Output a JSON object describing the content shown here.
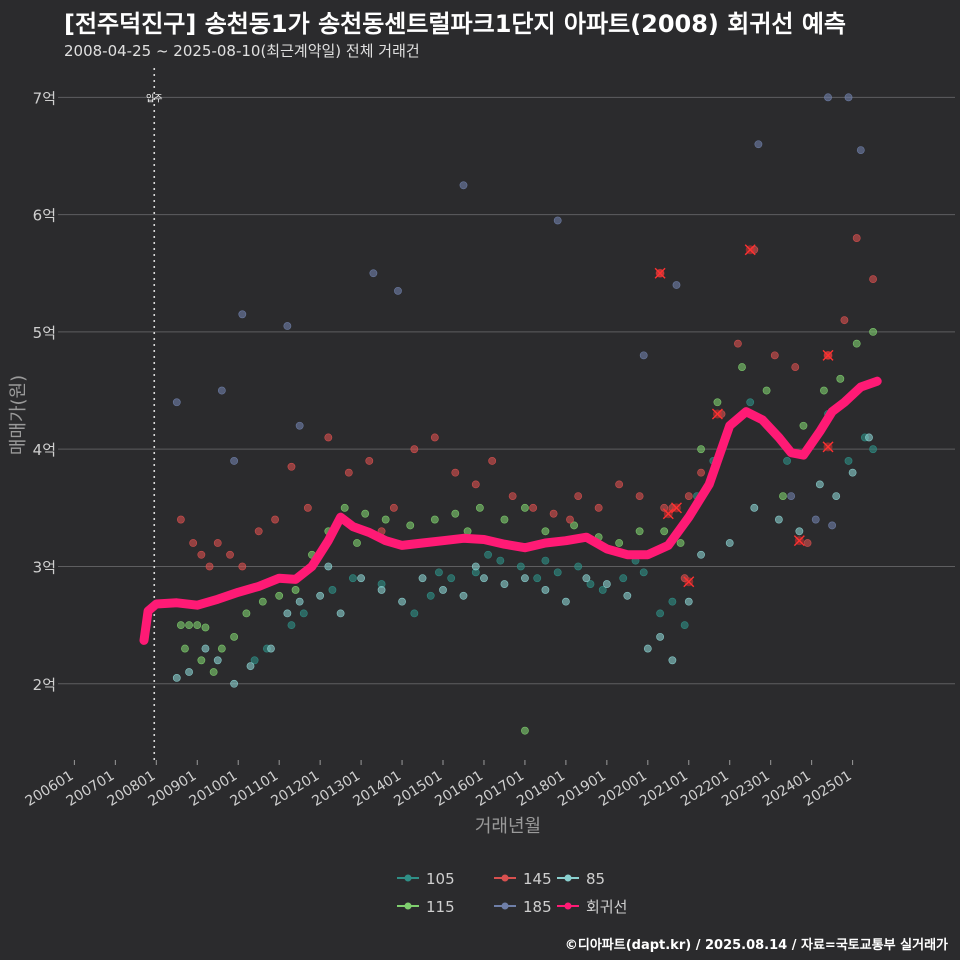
{
  "title": "[전주덕진구] 송천동1가 송천동센트럴파크1단지 아파트(2008) 회귀선 예측",
  "subtitle": "2008-04-25 ~ 2025-08-10(최근계약일) 전체 거래건",
  "credit": "©디아파트(dapt.kr) / 2025.08.14 / 자료=국토교통부 실거래가",
  "chart_data": {
    "type": "scatter",
    "xlabel": "거래년월",
    "ylabel": "매매가(원)",
    "xlim": [
      2005.6,
      2027.5
    ],
    "ylim": [
      1.35,
      7.25
    ],
    "x_ticks": [
      {
        "v": 2006.0,
        "label": "200601"
      },
      {
        "v": 2007.0,
        "label": "200701"
      },
      {
        "v": 2008.0,
        "label": "200801"
      },
      {
        "v": 2009.0,
        "label": "200901"
      },
      {
        "v": 2010.0,
        "label": "201001"
      },
      {
        "v": 2011.0,
        "label": "201101"
      },
      {
        "v": 2012.0,
        "label": "201201"
      },
      {
        "v": 2013.0,
        "label": "201301"
      },
      {
        "v": 2014.0,
        "label": "201401"
      },
      {
        "v": 2015.0,
        "label": "201501"
      },
      {
        "v": 2016.0,
        "label": "201601"
      },
      {
        "v": 2017.0,
        "label": "201701"
      },
      {
        "v": 2018.0,
        "label": "201801"
      },
      {
        "v": 2019.0,
        "label": "201901"
      },
      {
        "v": 2020.0,
        "label": "202001"
      },
      {
        "v": 2021.0,
        "label": "202101"
      },
      {
        "v": 2022.0,
        "label": "202201"
      },
      {
        "v": 2023.0,
        "label": "202301"
      },
      {
        "v": 2024.0,
        "label": "202401"
      },
      {
        "v": 2025.0,
        "label": "202501"
      }
    ],
    "y_ticks": [
      {
        "v": 2,
        "label": "2억"
      },
      {
        "v": 3,
        "label": "3억"
      },
      {
        "v": 4,
        "label": "4억"
      },
      {
        "v": 5,
        "label": "5억"
      },
      {
        "v": 6,
        "label": "6억"
      },
      {
        "v": 7,
        "label": "7억"
      }
    ],
    "move_in": {
      "x": 2007.95,
      "label": "입주"
    },
    "series": [
      {
        "name": "105",
        "color": "#2f8f86",
        "points": [
          [
            2010.4,
            2.2
          ],
          [
            2010.7,
            2.3
          ],
          [
            2011.3,
            2.5
          ],
          [
            2011.6,
            2.6
          ],
          [
            2012.3,
            2.8
          ],
          [
            2012.8,
            2.9
          ],
          [
            2013.5,
            2.85
          ],
          [
            2014.3,
            2.6
          ],
          [
            2014.7,
            2.75
          ],
          [
            2015.2,
            2.9
          ],
          [
            2015.8,
            2.95
          ],
          [
            2016.4,
            3.05
          ],
          [
            2016.9,
            3.0
          ],
          [
            2017.3,
            2.9
          ],
          [
            2017.8,
            2.95
          ],
          [
            2018.3,
            3.0
          ],
          [
            2018.9,
            2.8
          ],
          [
            2019.4,
            2.9
          ],
          [
            2019.9,
            2.95
          ],
          [
            2020.3,
            2.6
          ],
          [
            2020.6,
            2.7
          ],
          [
            2020.9,
            2.5
          ],
          [
            2021.2,
            3.6
          ],
          [
            2021.6,
            3.9
          ],
          [
            2022.5,
            4.4
          ],
          [
            2023.4,
            3.9
          ],
          [
            2023.9,
            4.0
          ],
          [
            2024.4,
            4.3
          ],
          [
            2024.9,
            3.9
          ],
          [
            2025.3,
            4.1
          ],
          [
            2025.5,
            4.0
          ],
          [
            2014.9,
            2.95
          ],
          [
            2016.1,
            3.1
          ],
          [
            2017.5,
            3.05
          ],
          [
            2018.6,
            2.85
          ],
          [
            2019.7,
            3.05
          ]
        ]
      },
      {
        "name": "115",
        "color": "#7fcf6e",
        "points": [
          [
            2008.6,
            2.5
          ],
          [
            2008.8,
            2.5
          ],
          [
            2009.0,
            2.5
          ],
          [
            2009.2,
            2.48
          ],
          [
            2008.7,
            2.3
          ],
          [
            2009.1,
            2.2
          ],
          [
            2009.4,
            2.1
          ],
          [
            2009.6,
            2.3
          ],
          [
            2009.9,
            2.4
          ],
          [
            2010.2,
            2.6
          ],
          [
            2010.6,
            2.7
          ],
          [
            2011.0,
            2.75
          ],
          [
            2011.4,
            2.8
          ],
          [
            2011.8,
            3.1
          ],
          [
            2012.2,
            3.3
          ],
          [
            2012.6,
            3.5
          ],
          [
            2013.1,
            3.45
          ],
          [
            2013.6,
            3.4
          ],
          [
            2014.2,
            3.35
          ],
          [
            2014.8,
            3.4
          ],
          [
            2015.3,
            3.45
          ],
          [
            2015.9,
            3.5
          ],
          [
            2016.5,
            3.4
          ],
          [
            2017.0,
            3.5
          ],
          [
            2017.5,
            3.3
          ],
          [
            2018.2,
            3.35
          ],
          [
            2018.8,
            3.25
          ],
          [
            2019.3,
            3.2
          ],
          [
            2019.8,
            3.3
          ],
          [
            2020.4,
            3.3
          ],
          [
            2020.8,
            3.2
          ],
          [
            2021.3,
            4.0
          ],
          [
            2021.7,
            4.4
          ],
          [
            2022.3,
            4.7
          ],
          [
            2022.9,
            4.5
          ],
          [
            2023.3,
            3.6
          ],
          [
            2023.8,
            4.2
          ],
          [
            2024.3,
            4.5
          ],
          [
            2024.7,
            4.6
          ],
          [
            2025.1,
            4.9
          ],
          [
            2025.5,
            5.0
          ],
          [
            2017.0,
            1.6
          ],
          [
            2012.9,
            3.2
          ],
          [
            2015.6,
            3.3
          ]
        ]
      },
      {
        "name": "145",
        "color": "#d8504f",
        "points": [
          [
            2008.6,
            3.4
          ],
          [
            2008.9,
            3.2
          ],
          [
            2009.1,
            3.1
          ],
          [
            2009.3,
            3.0
          ],
          [
            2009.5,
            3.2
          ],
          [
            2009.8,
            3.1
          ],
          [
            2010.1,
            3.0
          ],
          [
            2010.5,
            3.3
          ],
          [
            2010.9,
            3.4
          ],
          [
            2011.3,
            3.85
          ],
          [
            2011.7,
            3.5
          ],
          [
            2012.2,
            4.1
          ],
          [
            2012.7,
            3.8
          ],
          [
            2013.2,
            3.9
          ],
          [
            2013.8,
            3.5
          ],
          [
            2014.3,
            4.0
          ],
          [
            2014.8,
            4.1
          ],
          [
            2015.3,
            3.8
          ],
          [
            2015.8,
            3.7
          ],
          [
            2016.2,
            3.9
          ],
          [
            2016.7,
            3.6
          ],
          [
            2017.2,
            3.5
          ],
          [
            2017.7,
            3.45
          ],
          [
            2018.3,
            3.6
          ],
          [
            2018.8,
            3.5
          ],
          [
            2019.3,
            3.7
          ],
          [
            2019.8,
            3.6
          ],
          [
            2020.3,
            5.5
          ],
          [
            2020.6,
            3.5
          ],
          [
            2020.9,
            2.9
          ],
          [
            2021.3,
            3.8
          ],
          [
            2021.8,
            4.3
          ],
          [
            2022.2,
            4.9
          ],
          [
            2022.6,
            5.7
          ],
          [
            2023.1,
            4.8
          ],
          [
            2023.6,
            4.7
          ],
          [
            2023.9,
            3.2
          ],
          [
            2024.4,
            4.8
          ],
          [
            2024.8,
            5.1
          ],
          [
            2025.1,
            5.8
          ],
          [
            2025.5,
            5.45
          ],
          [
            2020.4,
            3.5
          ],
          [
            2021.0,
            3.6
          ],
          [
            2013.5,
            3.3
          ],
          [
            2018.1,
            3.4
          ]
        ]
      },
      {
        "name": "185",
        "color": "#6f7fa8",
        "points": [
          [
            2008.5,
            4.4
          ],
          [
            2009.6,
            4.5
          ],
          [
            2010.1,
            5.15
          ],
          [
            2009.9,
            3.9
          ],
          [
            2011.2,
            5.05
          ],
          [
            2011.5,
            4.2
          ],
          [
            2013.3,
            5.5
          ],
          [
            2013.9,
            5.35
          ],
          [
            2015.5,
            6.25
          ],
          [
            2017.8,
            5.95
          ],
          [
            2019.9,
            4.8
          ],
          [
            2020.7,
            5.4
          ],
          [
            2022.7,
            6.6
          ],
          [
            2024.4,
            7.0
          ],
          [
            2024.9,
            7.0
          ],
          [
            2025.2,
            6.55
          ],
          [
            2024.5,
            3.35
          ],
          [
            2024.1,
            3.4
          ],
          [
            2023.5,
            3.6
          ]
        ]
      },
      {
        "name": "85",
        "color": "#8ad0cf",
        "points": [
          [
            2008.5,
            2.05
          ],
          [
            2008.8,
            2.1
          ],
          [
            2009.2,
            2.3
          ],
          [
            2009.5,
            2.2
          ],
          [
            2009.9,
            2.0
          ],
          [
            2010.3,
            2.15
          ],
          [
            2010.8,
            2.3
          ],
          [
            2011.2,
            2.6
          ],
          [
            2011.5,
            2.7
          ],
          [
            2012.0,
            2.75
          ],
          [
            2012.5,
            2.6
          ],
          [
            2013.0,
            2.9
          ],
          [
            2013.5,
            2.8
          ],
          [
            2014.0,
            2.7
          ],
          [
            2014.5,
            2.9
          ],
          [
            2015.0,
            2.8
          ],
          [
            2015.5,
            2.75
          ],
          [
            2016.0,
            2.9
          ],
          [
            2016.5,
            2.85
          ],
          [
            2017.0,
            2.9
          ],
          [
            2017.5,
            2.8
          ],
          [
            2018.0,
            2.7
          ],
          [
            2018.5,
            2.9
          ],
          [
            2019.0,
            2.85
          ],
          [
            2019.5,
            2.75
          ],
          [
            2020.0,
            2.3
          ],
          [
            2020.3,
            2.4
          ],
          [
            2020.6,
            2.2
          ],
          [
            2021.0,
            2.7
          ],
          [
            2021.3,
            3.1
          ],
          [
            2022.0,
            3.2
          ],
          [
            2022.6,
            3.5
          ],
          [
            2023.2,
            3.4
          ],
          [
            2023.7,
            3.3
          ],
          [
            2024.2,
            3.7
          ],
          [
            2024.6,
            3.6
          ],
          [
            2025.0,
            3.8
          ],
          [
            2025.4,
            4.1
          ],
          [
            2012.2,
            3.0
          ],
          [
            2015.8,
            3.0
          ]
        ]
      }
    ],
    "outliers": [
      [
        2020.3,
        5.5
      ],
      [
        2020.5,
        3.45
      ],
      [
        2020.7,
        3.5
      ],
      [
        2021.0,
        2.87
      ],
      [
        2021.7,
        4.3
      ],
      [
        2022.5,
        5.7
      ],
      [
        2023.7,
        3.22
      ],
      [
        2024.4,
        4.8
      ],
      [
        2024.4,
        4.02
      ]
    ],
    "regression": {
      "name": "회귀선",
      "color": "#ff1a75",
      "points": [
        [
          2007.7,
          2.37
        ],
        [
          2007.8,
          2.62
        ],
        [
          2008.0,
          2.68
        ],
        [
          2008.5,
          2.69
        ],
        [
          2009.0,
          2.67
        ],
        [
          2009.5,
          2.72
        ],
        [
          2010.0,
          2.78
        ],
        [
          2010.5,
          2.83
        ],
        [
          2011.0,
          2.9
        ],
        [
          2011.4,
          2.89
        ],
        [
          2011.8,
          3.0
        ],
        [
          2012.2,
          3.22
        ],
        [
          2012.5,
          3.42
        ],
        [
          2012.8,
          3.34
        ],
        [
          2013.2,
          3.29
        ],
        [
          2013.6,
          3.22
        ],
        [
          2014.0,
          3.18
        ],
        [
          2014.5,
          3.2
        ],
        [
          2015.0,
          3.22
        ],
        [
          2015.5,
          3.24
        ],
        [
          2016.0,
          3.23
        ],
        [
          2016.5,
          3.19
        ],
        [
          2017.0,
          3.16
        ],
        [
          2017.5,
          3.2
        ],
        [
          2018.0,
          3.22
        ],
        [
          2018.5,
          3.25
        ],
        [
          2019.0,
          3.15
        ],
        [
          2019.5,
          3.1
        ],
        [
          2020.0,
          3.1
        ],
        [
          2020.5,
          3.18
        ],
        [
          2021.0,
          3.42
        ],
        [
          2021.5,
          3.7
        ],
        [
          2022.0,
          4.2
        ],
        [
          2022.4,
          4.32
        ],
        [
          2022.8,
          4.25
        ],
        [
          2023.2,
          4.1
        ],
        [
          2023.5,
          3.97
        ],
        [
          2023.8,
          3.95
        ],
        [
          2024.2,
          4.15
        ],
        [
          2024.5,
          4.32
        ],
        [
          2024.8,
          4.4
        ],
        [
          2025.2,
          4.53
        ],
        [
          2025.6,
          4.58
        ]
      ]
    },
    "legend": [
      {
        "name": "105",
        "color": "#2f8f86"
      },
      {
        "name": "145",
        "color": "#d8504f"
      },
      {
        "name": "85",
        "color": "#8ad0cf"
      },
      {
        "name": "115",
        "color": "#7fcf6e"
      },
      {
        "name": "185",
        "color": "#6f7fa8"
      },
      {
        "name": "회귀선",
        "color": "#ff1a75"
      }
    ]
  }
}
